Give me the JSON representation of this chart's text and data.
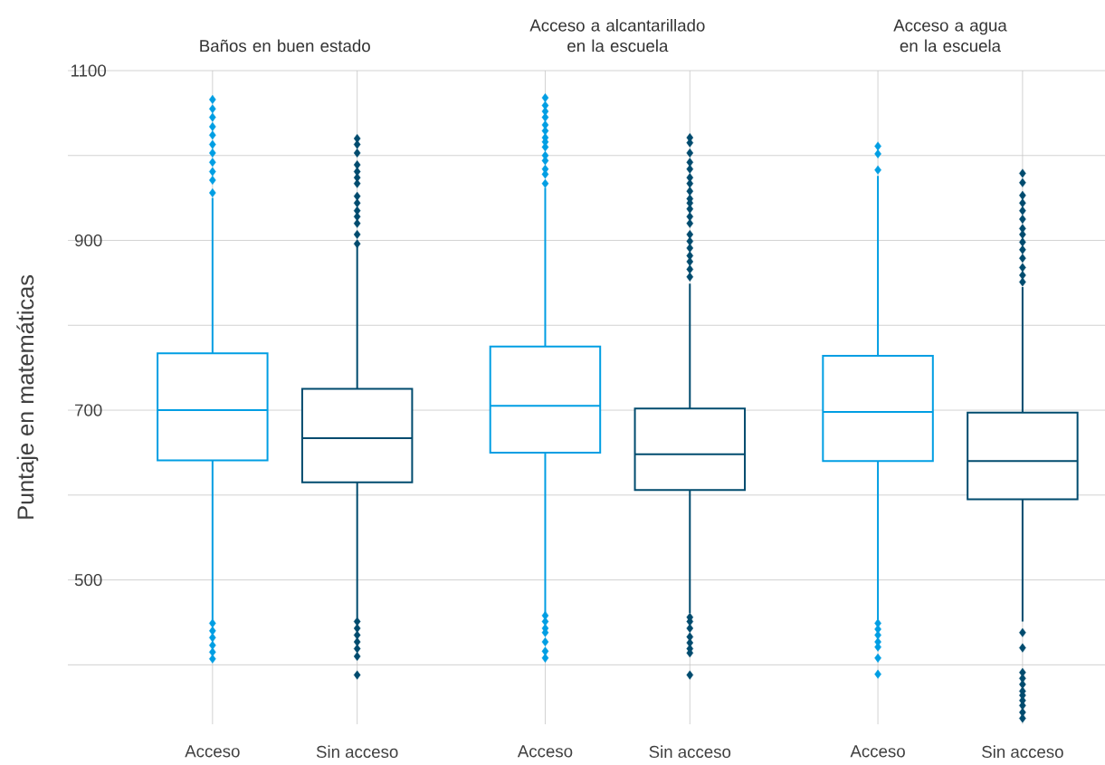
{
  "chart_data": {
    "type": "box",
    "ylabel": "Puntaje en matemáticas",
    "annotations": [
      "Baños en buen estado",
      "Acceso a alcantarillado en la escuela",
      "Acceso a agua en la escuela"
    ],
    "categories": [
      "Acceso",
      "Sin acceso",
      "Acceso",
      "Sin acceso",
      "Acceso",
      "Sin acceso"
    ],
    "colors": [
      "#009ee3",
      "#004b6e",
      "#009ee3",
      "#004b6e",
      "#009ee3",
      "#004b6e"
    ],
    "boxes": [
      {
        "low": 453,
        "q1": 641,
        "median": 700,
        "q3": 767,
        "high": 950,
        "outliers": [
          1066,
          1055,
          1045,
          1034,
          1024,
          1013,
          1003,
          992,
          981,
          971,
          956,
          449,
          440,
          432,
          423,
          415,
          407
        ]
      },
      {
        "low": 455,
        "q1": 615,
        "median": 667,
        "q3": 725,
        "high": 893,
        "outliers": [
          1020,
          1013,
          1003,
          989,
          981,
          974,
          967,
          952,
          944,
          935,
          928,
          920,
          907,
          896,
          451,
          443,
          435,
          427,
          419,
          410,
          388
        ]
      },
      {
        "low": 461,
        "q1": 650,
        "median": 705,
        "q3": 775,
        "high": 962,
        "outliers": [
          1068,
          1059,
          1052,
          1045,
          1036,
          1029,
          1021,
          1016,
          1010,
          1000,
          994,
          984,
          978,
          967,
          458,
          451,
          443,
          438,
          427,
          416,
          408
        ]
      },
      {
        "low": 461,
        "q1": 606,
        "median": 648,
        "q3": 702,
        "high": 849,
        "outliers": [
          1021,
          1015,
          1003,
          992,
          984,
          974,
          967,
          958,
          949,
          944,
          937,
          928,
          920,
          907,
          899,
          891,
          882,
          875,
          866,
          857,
          456,
          451,
          443,
          433,
          426,
          419,
          414,
          388
        ]
      },
      {
        "low": 453,
        "q1": 640,
        "median": 698,
        "q3": 764,
        "high": 976,
        "outliers": [
          1011,
          1002,
          983,
          449,
          442,
          435,
          427,
          421,
          408,
          389
        ]
      },
      {
        "low": 451,
        "q1": 595,
        "median": 640,
        "q3": 697,
        "high": 845,
        "outliers": [
          979,
          968,
          953,
          944,
          935,
          925,
          914,
          907,
          898,
          889,
          879,
          868,
          859,
          851,
          438,
          420,
          391,
          384,
          377,
          369,
          364,
          358,
          352,
          344,
          337
        ]
      }
    ],
    "ylim": [
      330,
      1100
    ],
    "yticks": [
      {
        "value": 400,
        "label": null
      },
      500,
      {
        "value": 600,
        "label": null
      },
      700,
      {
        "value": 800,
        "label": null
      },
      900,
      {
        "value": 1000,
        "label": null
      },
      1100
    ],
    "grid": true,
    "marker": "diamond"
  }
}
